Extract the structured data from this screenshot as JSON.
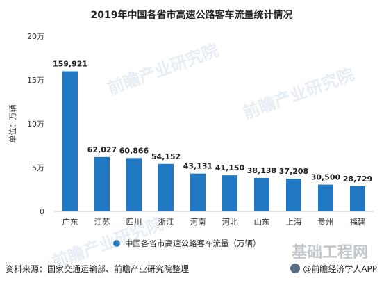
{
  "chart_data": {
    "type": "bar",
    "title": "2019年中国各省市高速公路客车流量统计情况",
    "ylabel": "单位：万辆",
    "categories": [
      "广东",
      "江苏",
      "四川",
      "浙江",
      "河南",
      "河北",
      "山东",
      "上海",
      "贵州",
      "福建"
    ],
    "series": [
      {
        "name": "中国各省市高速公路客车流量（万辆）",
        "values": [
          159921,
          62027,
          60866,
          54152,
          43131,
          41150,
          38138,
          37208,
          30500,
          28729
        ],
        "data_labels": [
          "159,921",
          "62,027",
          "60,866",
          "54,152",
          "43,131",
          "41,150",
          "38,138",
          "37,208",
          "30,500",
          "28,729"
        ]
      }
    ],
    "yticks": [
      0,
      50000,
      100000,
      150000,
      200000
    ],
    "ytick_labels": [
      "0",
      "5万",
      "10万",
      "15万",
      "20万"
    ],
    "ylim": [
      0,
      200000
    ],
    "grid": false,
    "legend_position": "bottom",
    "bar_color": "#1F78C1"
  },
  "footer": {
    "source": "资料来源：国家交通运输部、前瞻产业研究院整理",
    "brand": "@前瞻经济学人APP"
  },
  "watermark": {
    "text": "前瞻产业研究院",
    "site": "基础工程网"
  }
}
